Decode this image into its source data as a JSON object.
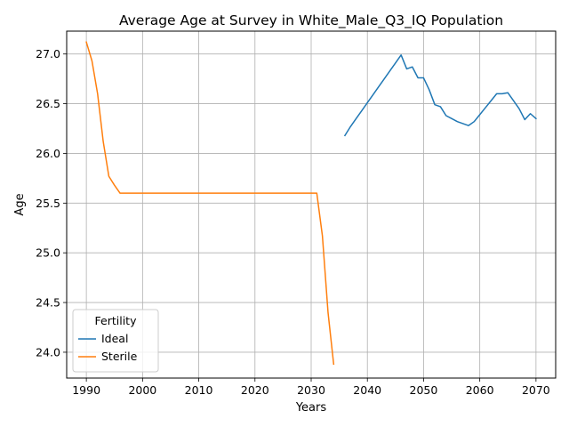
{
  "chart_data": {
    "type": "line",
    "title": "Average Age at Survey in White_Male_Q3_IQ Population",
    "xlabel": "Years",
    "ylabel": "Age",
    "xlim": [
      1986.5,
      2073.5
    ],
    "ylim": [
      23.74,
      27.23
    ],
    "xticks": [
      1990,
      2000,
      2010,
      2020,
      2030,
      2040,
      2050,
      2060,
      2070
    ],
    "yticks": [
      24.0,
      24.5,
      25.0,
      25.5,
      26.0,
      26.5,
      27.0
    ],
    "grid": true,
    "legend": {
      "title": "Fertility",
      "position": "lower-left"
    },
    "series": [
      {
        "name": "Ideal",
        "color": "#1f77b4",
        "x": [
          2036,
          2037,
          2038,
          2039,
          2040,
          2041,
          2042,
          2043,
          2044,
          2045,
          2046,
          2047,
          2048,
          2049,
          2050,
          2051,
          2052,
          2053,
          2054,
          2055,
          2056,
          2057,
          2058,
          2059,
          2060,
          2061,
          2062,
          2063,
          2064,
          2065,
          2066,
          2067,
          2068,
          2069,
          2070
        ],
        "y": [
          26.18,
          26.27,
          26.35,
          26.43,
          26.51,
          26.59,
          26.67,
          26.75,
          26.83,
          26.91,
          26.99,
          26.85,
          26.87,
          26.76,
          26.76,
          26.64,
          26.49,
          26.47,
          26.38,
          26.35,
          26.32,
          26.3,
          26.28,
          26.32,
          26.39,
          26.46,
          26.53,
          26.6,
          26.6,
          26.61,
          26.53,
          26.45,
          26.34,
          26.4,
          26.35
        ]
      },
      {
        "name": "Sterile",
        "color": "#ff7f0e",
        "x": [
          1990,
          1991,
          1992,
          1993,
          1994,
          1995,
          1996,
          1997,
          2000,
          2010,
          2020,
          2030,
          2031,
          2032,
          2033,
          2034
        ],
        "y": [
          27.12,
          26.93,
          26.6,
          26.12,
          25.77,
          25.68,
          25.6,
          25.6,
          25.6,
          25.6,
          25.6,
          25.6,
          25.6,
          25.17,
          24.4,
          23.88
        ]
      }
    ]
  }
}
